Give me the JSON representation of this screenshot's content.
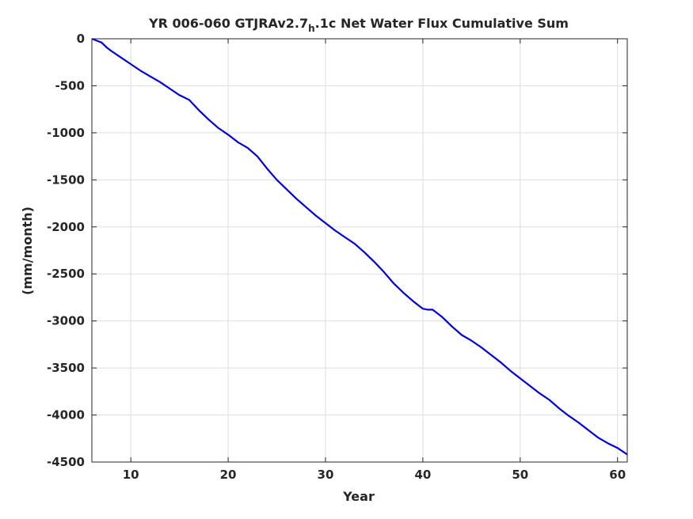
{
  "chart_data": {
    "type": "line",
    "title": {
      "prefix": "YR 006-060 GTJRAv2.7",
      "subscript": "h",
      "suffix": ".1c Net Water Flux Cumulative Sum"
    },
    "xlabel": "Year",
    "ylabel": "(mm/month)",
    "xlim": [
      6,
      61
    ],
    "ylim": [
      -4500,
      0
    ],
    "xticks": [
      10,
      20,
      30,
      40,
      50,
      60
    ],
    "yticks": [
      0,
      -500,
      -1000,
      -1500,
      -2000,
      -2500,
      -3000,
      -3500,
      -4000,
      -4500
    ],
    "grid": true,
    "line_color": "#0000e6",
    "series": [
      {
        "x": [
          6,
          6.5,
          7,
          7.5,
          8,
          9,
          10,
          11,
          12,
          13,
          14,
          15,
          15.5,
          16,
          17,
          18,
          19,
          20,
          21,
          22,
          23,
          24,
          25,
          26,
          27,
          28,
          29,
          30,
          31,
          32,
          33,
          34,
          35,
          36,
          37,
          38,
          39,
          40,
          40.5,
          41,
          42,
          43,
          44,
          45,
          46,
          47,
          48,
          49,
          50,
          51,
          52,
          53,
          54,
          55,
          56,
          57,
          58,
          59,
          60,
          61
        ],
        "y": [
          0,
          -20,
          -40,
          -90,
          -130,
          -200,
          -270,
          -340,
          -400,
          -460,
          -530,
          -600,
          -625,
          -650,
          -760,
          -860,
          -950,
          -1020,
          -1100,
          -1160,
          -1250,
          -1380,
          -1500,
          -1600,
          -1700,
          -1790,
          -1880,
          -1960,
          -2040,
          -2110,
          -2180,
          -2270,
          -2370,
          -2480,
          -2600,
          -2700,
          -2790,
          -2870,
          -2880,
          -2880,
          -2960,
          -3060,
          -3150,
          -3210,
          -3280,
          -3360,
          -3440,
          -3530,
          -3610,
          -3690,
          -3770,
          -3840,
          -3930,
          -4010,
          -4080,
          -4160,
          -4240,
          -4300,
          -4350,
          -4420
        ]
      }
    ]
  }
}
